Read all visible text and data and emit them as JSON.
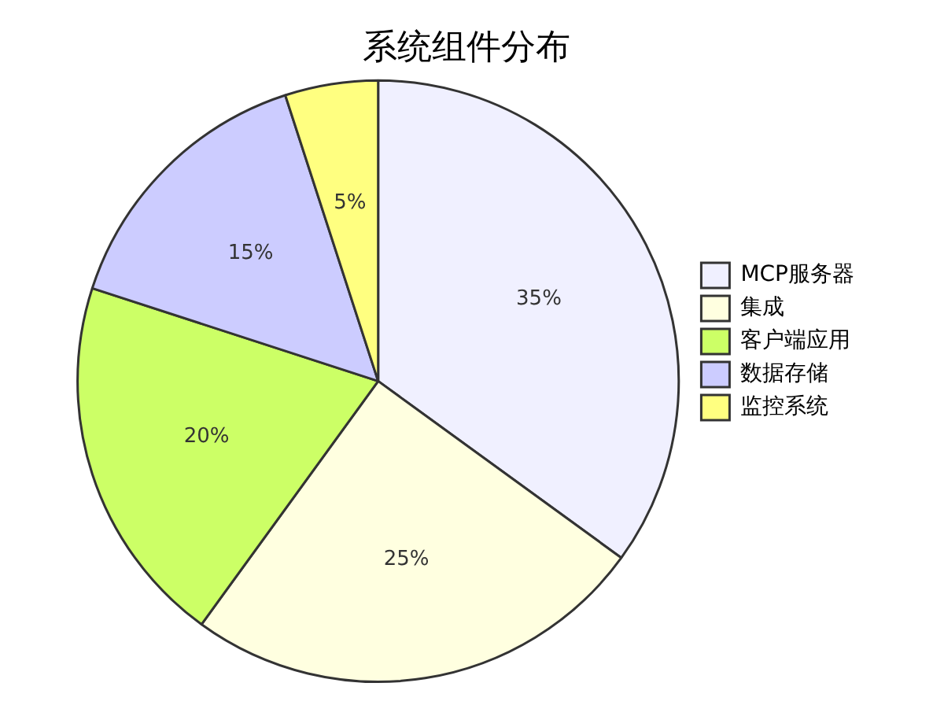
{
  "chart_data": {
    "type": "pie",
    "title": "系统组件分布",
    "categories": [
      "MCP服务器",
      "集成",
      "客户端应用",
      "数据存储",
      "监控系统"
    ],
    "values": [
      35,
      25,
      20,
      15,
      5
    ],
    "colors": [
      "#f0f0ff",
      "#ffffe0",
      "#ccff66",
      "#ccccff",
      "#ffff80"
    ],
    "value_labels": [
      "35%",
      "25%",
      "20%",
      "15%",
      "5%"
    ],
    "legend": "right"
  }
}
